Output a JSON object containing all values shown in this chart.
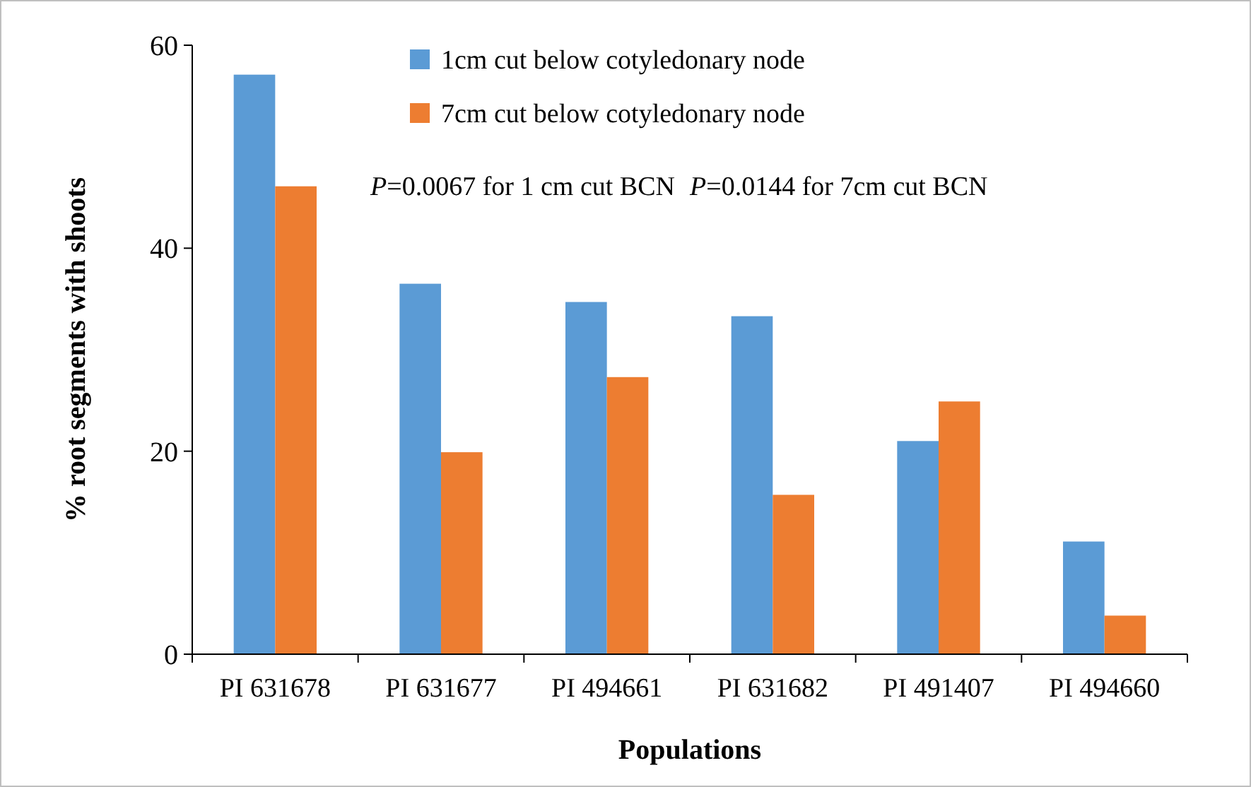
{
  "chart_data": {
    "type": "bar",
    "xlabel": "Populations",
    "ylabel": "% root segments with shoots",
    "categories": [
      "PI 631678",
      "PI 631677",
      "PI 494661",
      "PI 631682",
      "PI 491407",
      "PI 494660"
    ],
    "series": [
      {
        "name": "1cm cut below cotyledonary node",
        "color": "#5b9bd5",
        "values": [
          57.1,
          36.5,
          34.7,
          33.3,
          21.0,
          11.1
        ]
      },
      {
        "name": "7cm cut below cotyledonary node",
        "color": "#ed7d31",
        "values": [
          46.1,
          19.9,
          27.3,
          15.7,
          24.9,
          3.8
        ]
      }
    ],
    "ylim": [
      0,
      60
    ],
    "yticks": [
      0,
      20,
      40,
      60
    ],
    "grid": false,
    "legend": "top",
    "annotations": [
      "P=0.0067 for 1 cm cut BCN",
      "P=0.0144 for 7cm cut BCN"
    ]
  }
}
